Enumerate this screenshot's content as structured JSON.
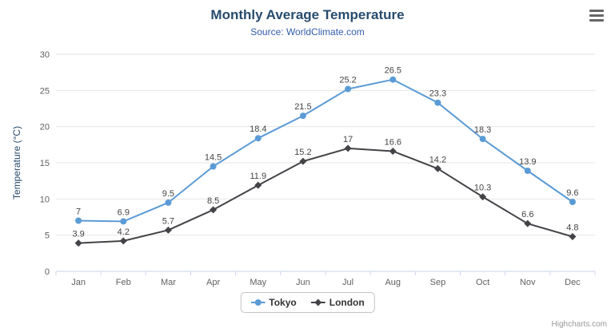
{
  "chart_data": {
    "type": "line",
    "title": "Monthly Average Temperature",
    "subtitle": "Source: WorldClimate.com",
    "categories": [
      "Jan",
      "Feb",
      "Mar",
      "Apr",
      "May",
      "Jun",
      "Jul",
      "Aug",
      "Sep",
      "Oct",
      "Nov",
      "Dec"
    ],
    "series": [
      {
        "name": "Tokyo",
        "color": "#5b9bd5",
        "marker": "circle",
        "values": [
          7,
          6.9,
          9.5,
          14.5,
          18.4,
          21.5,
          25.2,
          26.5,
          23.3,
          18.3,
          13.9,
          9.6
        ]
      },
      {
        "name": "London",
        "color": "#434348",
        "marker": "diamond",
        "values": [
          3.9,
          4.2,
          5.7,
          8.5,
          11.9,
          15.2,
          17,
          16.6,
          14.2,
          10.3,
          6.6,
          4.8
        ]
      }
    ],
    "xlabel": "",
    "ylabel": "Temperature (°C)",
    "ylim": [
      0,
      30
    ],
    "ytick_step": 5,
    "grid": true,
    "legend_position": "bottom-center",
    "data_labels": true
  },
  "colors": {
    "title": "#274b6d",
    "subtitle": "#335cad",
    "axis_label": "#606060",
    "grid": "#e6e6e6",
    "axis_line": "#ccd6eb",
    "data_label": "#444444"
  },
  "menu_button": {
    "icon": "hamburger-menu-icon"
  },
  "credits": {
    "label": "Highcharts.com"
  }
}
